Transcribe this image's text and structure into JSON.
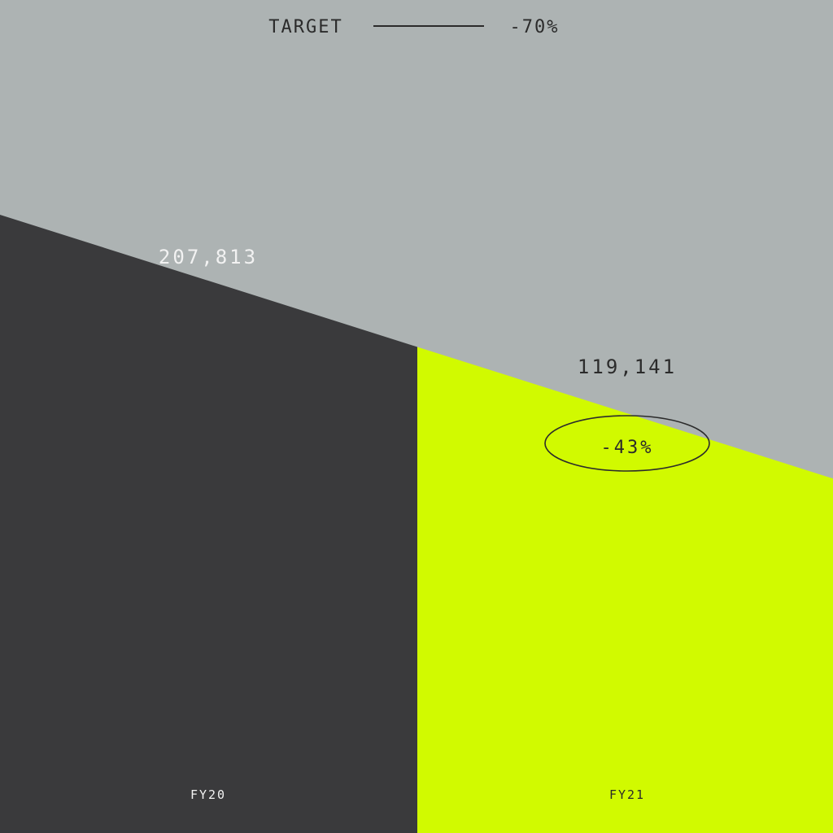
{
  "colors": {
    "background": "#adb3b3",
    "fy20_fill": "#3a3a3c",
    "fy21_fill": "#d1fa00",
    "dark_text": "#2b2b2b",
    "light_text": "#f2f2f2"
  },
  "legend": {
    "target_label": "TARGET",
    "target_value": "-70%"
  },
  "chart_data": {
    "type": "bar",
    "categories": [
      "FY20",
      "FY21"
    ],
    "values": [
      207813,
      119141
    ],
    "value_labels": [
      "207,813",
      "119,141"
    ],
    "change_label": "-43%",
    "target_label": "TARGET",
    "target_change": "-70%",
    "title": "",
    "xlabel": "",
    "ylabel": "",
    "ylim": [
      0,
      280000
    ],
    "grid": false,
    "legend_position": "top-center"
  }
}
